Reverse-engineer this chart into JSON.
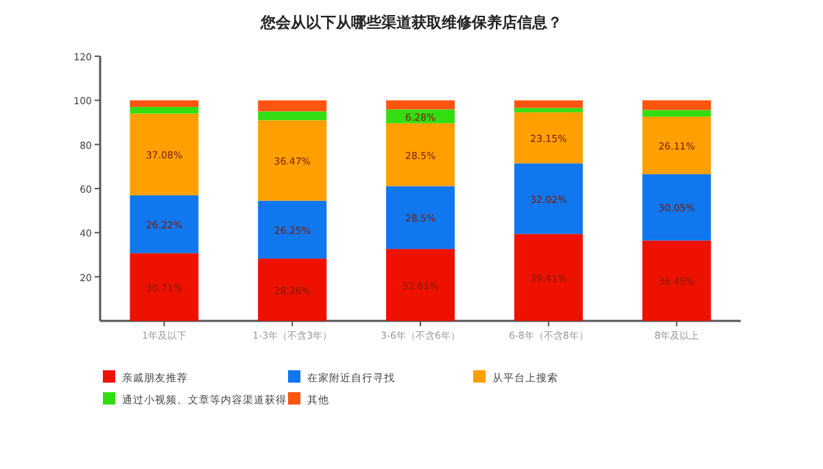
{
  "chart_data": {
    "type": "bar",
    "stacked": true,
    "title": "您会从以下从哪些渠道获取维修保养店信息？",
    "categories": [
      "1年及以下",
      "1-3年（不含3年）",
      "3-6年（不含6年）",
      "6-8年（不含8年）",
      "8年及以上"
    ],
    "series": [
      {
        "name": "亲戚朋友推荐",
        "color": "#ee1100",
        "values": [
          30.71,
          28.26,
          32.61,
          39.41,
          36.45
        ],
        "value_labels": [
          "30.71%",
          "28.26%",
          "32.61%",
          "39.41%",
          "36.45%"
        ]
      },
      {
        "name": "在家附近自行寻找",
        "color": "#1177ee",
        "values": [
          26.22,
          26.25,
          28.5,
          32.02,
          30.05
        ],
        "value_labels": [
          "26.22%",
          "26.25%",
          "28.5%",
          "32.02%",
          "30.05%"
        ]
      },
      {
        "name": "从平台上搜索",
        "color": "#ffa000",
        "values": [
          37.08,
          36.47,
          28.5,
          23.15,
          26.11
        ],
        "value_labels": [
          "37.08%",
          "36.47%",
          "28.5%",
          "23.15%",
          "26.11%"
        ]
      },
      {
        "name": "通过小视频、文章等内容渠道获得",
        "color": "#33dd11",
        "values": [
          3,
          4,
          6.28,
          2,
          3
        ],
        "value_labels": [
          null,
          null,
          "6.28%",
          null,
          null
        ]
      },
      {
        "name": "其他",
        "color": "#ff5511",
        "values": [
          3,
          5,
          4.1,
          3.4,
          4.4
        ],
        "value_labels": [
          null,
          null,
          null,
          null,
          null
        ]
      }
    ],
    "ylim": [
      0,
      120
    ],
    "yticks": [
      20,
      40,
      60,
      80,
      100,
      120
    ],
    "legend": "bottom"
  }
}
